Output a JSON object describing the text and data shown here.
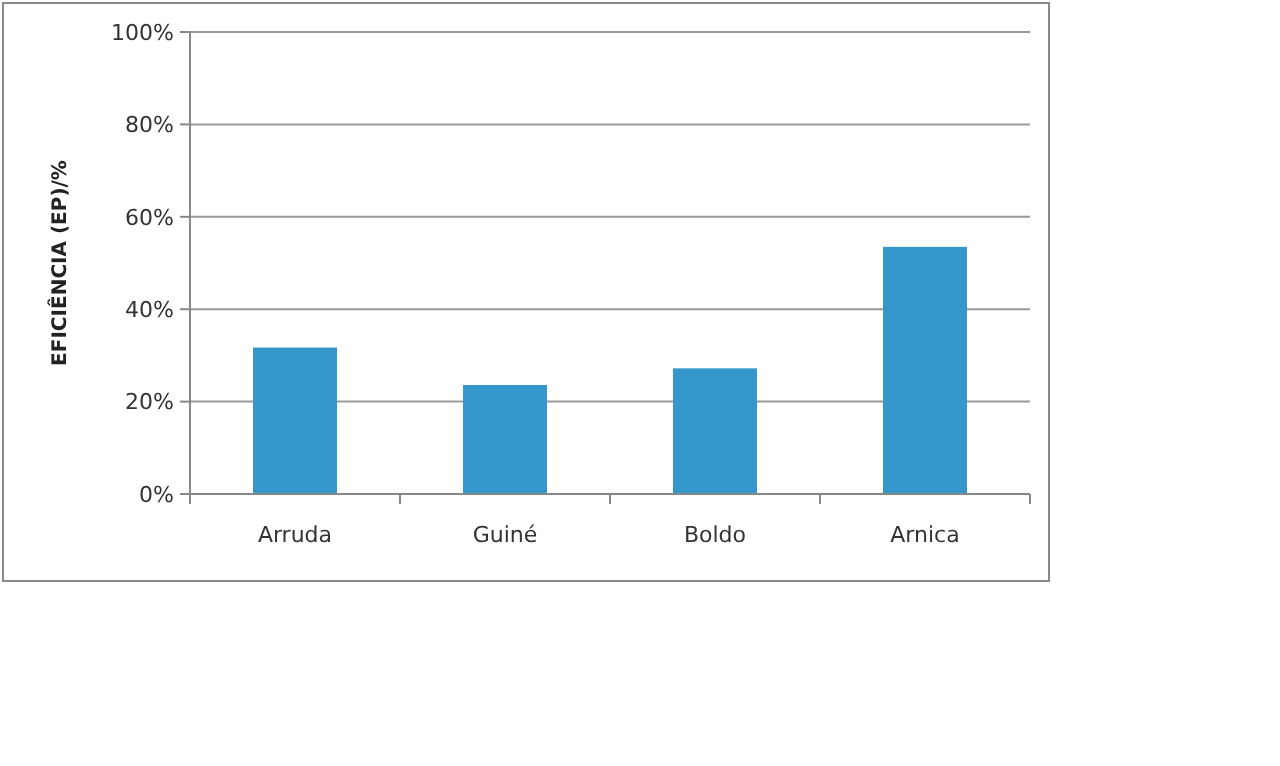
{
  "chart_data": {
    "type": "bar",
    "ylabel": "EFICIÊNCIA (EP)/%",
    "categories": [
      "Arruda",
      "Guiné",
      "Boldo",
      "Arnica"
    ],
    "values": [
      31.7,
      23.6,
      27.2,
      53.5
    ],
    "color": "#3597cc",
    "ylim": [
      0,
      100
    ],
    "yticks": [
      {
        "value": 0,
        "label": "0%"
      },
      {
        "value": 20,
        "label": "20%"
      },
      {
        "value": 40,
        "label": "40%"
      },
      {
        "value": 60,
        "label": "60%"
      },
      {
        "value": 80,
        "label": "80%"
      },
      {
        "value": 100,
        "label": "100%"
      }
    ],
    "grid": "y"
  }
}
